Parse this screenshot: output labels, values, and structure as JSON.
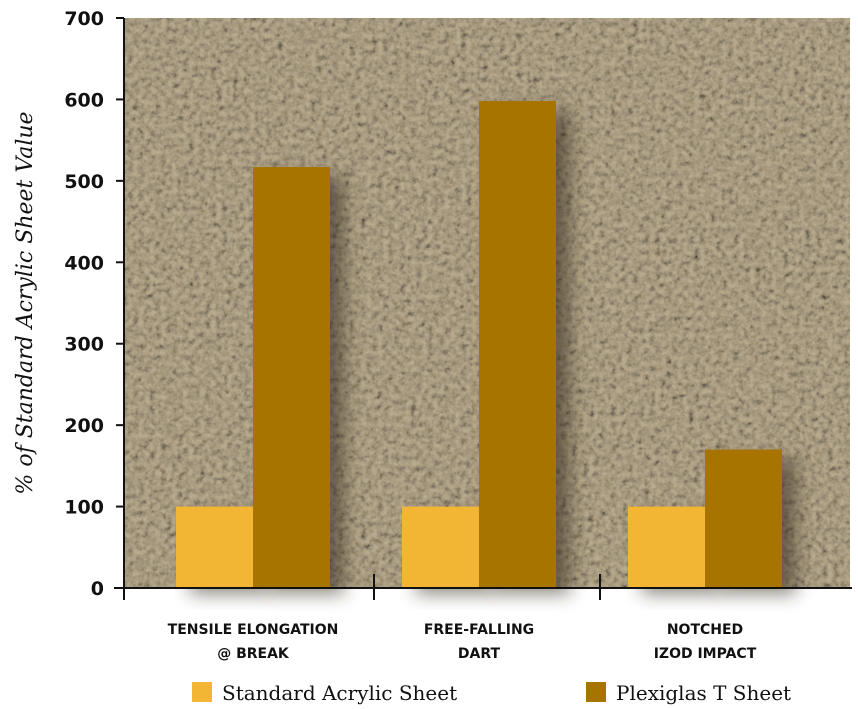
{
  "chart_data": {
    "type": "bar",
    "title": "",
    "ylabel": "% of Standard Acrylic Sheet Value",
    "xlabel": "",
    "ylim": [
      0,
      700
    ],
    "yticks": [
      0,
      100,
      200,
      300,
      400,
      500,
      600,
      700
    ],
    "categories": [
      [
        "TENSILE ELONGATION",
        "@ BREAK"
      ],
      [
        "FREE-FALLING",
        "DART"
      ],
      [
        "NOTCHED",
        "IZOD IMPACT"
      ]
    ],
    "series": [
      {
        "name": "Standard Acrylic Sheet",
        "values": [
          100,
          100,
          100
        ],
        "color": "#f2b634"
      },
      {
        "name": "Plexiglas T Sheet",
        "values": [
          517,
          598,
          170
        ],
        "color": "#a87400"
      }
    ],
    "legend": "bottom",
    "grid": false,
    "background": "speckled-stone-texture"
  }
}
